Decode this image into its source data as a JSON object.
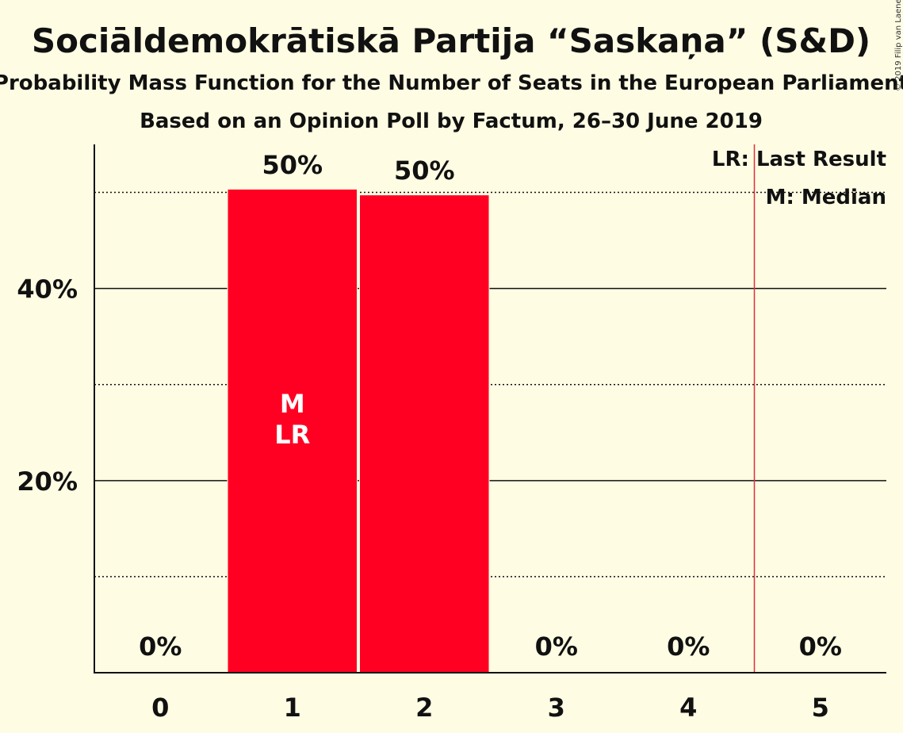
{
  "chart_data": {
    "type": "bar",
    "title": "Sociāldemokrātiskā Partija “Saskaņa” (S&D)",
    "subtitle": "Probability Mass Function for the Number of Seats in the European Parliament",
    "subtitle2": "Based on an Opinion Poll by Factum, 26–30 June 2019",
    "categories": [
      "0",
      "1",
      "2",
      "3",
      "4",
      "5"
    ],
    "values": [
      0,
      50.3,
      49.7,
      0,
      0,
      0
    ],
    "data_labels": [
      "0%",
      "50%",
      "50%",
      "0%",
      "0%",
      "0%"
    ],
    "ylim": [
      0,
      55
    ],
    "y_ticks": [
      {
        "value": 20,
        "label": "20%"
      },
      {
        "value": 40,
        "label": "40%"
      }
    ],
    "minor_gridlines": [
      10,
      30,
      50
    ],
    "median_category": "1",
    "last_result_category": "1",
    "median_marker": "M",
    "last_result_marker": "LR",
    "majority_line_between": [
      4,
      5
    ],
    "legend": {
      "last_result": "LR: Last Result",
      "median": "M: Median",
      "position": "top-right"
    },
    "colors": {
      "bar": "#FF0022",
      "background": "#FEFCE3",
      "threshold_line": "#E0303A"
    },
    "copyright": "© 2019 Filip van Laenen"
  }
}
